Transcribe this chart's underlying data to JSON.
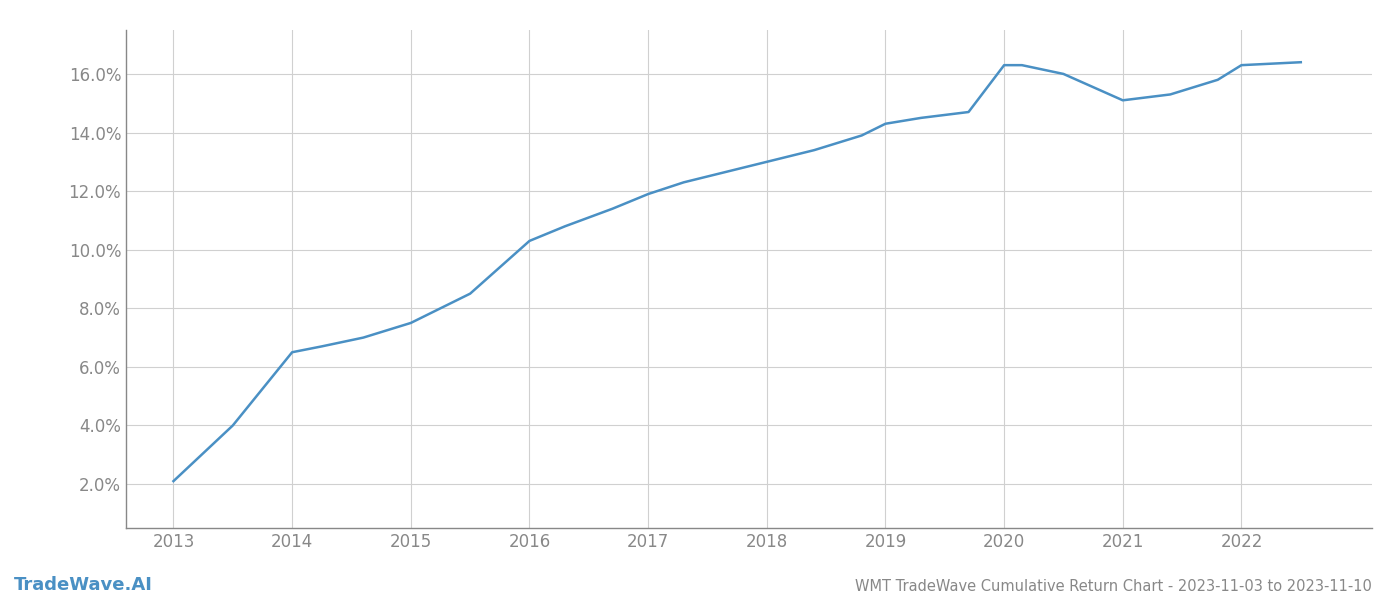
{
  "x_years": [
    2013.0,
    2013.5,
    2014.0,
    2014.25,
    2014.6,
    2015.0,
    2015.5,
    2016.0,
    2016.3,
    2016.7,
    2017.0,
    2017.3,
    2017.7,
    2018.0,
    2018.4,
    2018.8,
    2019.0,
    2019.3,
    2019.7,
    2020.0,
    2020.15,
    2020.5,
    2021.0,
    2021.4,
    2021.8,
    2022.0,
    2022.5
  ],
  "y_values": [
    0.021,
    0.04,
    0.065,
    0.067,
    0.07,
    0.075,
    0.085,
    0.103,
    0.108,
    0.114,
    0.119,
    0.123,
    0.127,
    0.13,
    0.134,
    0.139,
    0.143,
    0.145,
    0.147,
    0.163,
    0.163,
    0.16,
    0.151,
    0.153,
    0.158,
    0.163,
    0.164
  ],
  "line_color": "#4a90c4",
  "line_width": 1.8,
  "title": "WMT TradeWave Cumulative Return Chart - 2023-11-03 to 2023-11-10",
  "watermark": "TradeWave.AI",
  "background_color": "#ffffff",
  "grid_color": "#d0d0d0",
  "axis_color": "#888888",
  "tick_label_color": "#888888",
  "title_color": "#888888",
  "watermark_color": "#4a90c4",
  "xlim": [
    2012.6,
    2023.1
  ],
  "ylim": [
    0.005,
    0.175
  ],
  "yticks": [
    0.02,
    0.04,
    0.06,
    0.08,
    0.1,
    0.12,
    0.14,
    0.16
  ],
  "xticks": [
    2013,
    2014,
    2015,
    2016,
    2017,
    2018,
    2019,
    2020,
    2021,
    2022
  ]
}
